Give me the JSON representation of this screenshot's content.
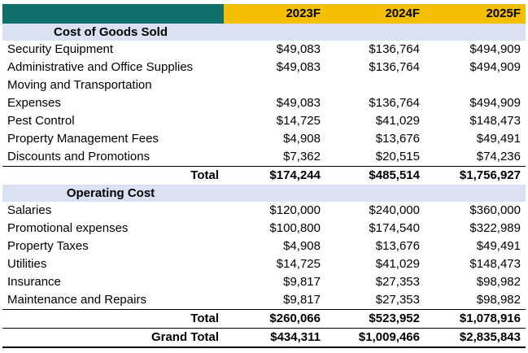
{
  "columns": [
    "2023F",
    "2024F",
    "2025F"
  ],
  "colors": {
    "corner": "#0f6f6b",
    "header": "#f4bf00",
    "section": "#d9e1f2"
  },
  "cogs": {
    "title": "Cost of Goods Sold",
    "rows": [
      {
        "label": "Security Equipment",
        "values": [
          "$49,083",
          "$136,764",
          "$494,909"
        ]
      },
      {
        "label": "Administrative and Office Supplies",
        "values": [
          "$49,083",
          "$136,764",
          "$494,909"
        ]
      },
      {
        "label": "Moving and Transportation",
        "values": [
          "",
          "",
          ""
        ]
      },
      {
        "label": "Expenses",
        "values": [
          "$49,083",
          "$136,764",
          "$494,909"
        ]
      },
      {
        "label": "Pest Control",
        "values": [
          "$14,725",
          "$41,029",
          "$148,473"
        ]
      },
      {
        "label": "Property Management Fees",
        "values": [
          "$4,908",
          "$13,676",
          "$49,491"
        ]
      },
      {
        "label": "Discounts and Promotions",
        "values": [
          "$7,362",
          "$20,515",
          "$74,236"
        ]
      }
    ],
    "total": {
      "label": "Total",
      "values": [
        "$174,244",
        "$485,514",
        "$1,756,927"
      ]
    }
  },
  "opex": {
    "title": "Operating Cost",
    "rows": [
      {
        "label": "Salaries",
        "values": [
          "$120,000",
          "$240,000",
          "$360,000"
        ]
      },
      {
        "label": "Promotional expenses",
        "values": [
          "$100,800",
          "$174,540",
          "$322,989"
        ]
      },
      {
        "label": "Property Taxes",
        "values": [
          "$4,908",
          "$13,676",
          "$49,491"
        ]
      },
      {
        "label": "Utilities",
        "values": [
          "$14,725",
          "$41,029",
          "$148,473"
        ]
      },
      {
        "label": "Insurance",
        "values": [
          "$9,817",
          "$27,353",
          "$98,982"
        ]
      },
      {
        "label": "Maintenance and Repairs",
        "values": [
          "$9,817",
          "$27,353",
          "$98,982"
        ]
      }
    ],
    "total": {
      "label": "Total",
      "values": [
        "$260,066",
        "$523,952",
        "$1,078,916"
      ]
    }
  },
  "grand_total": {
    "label": "Grand Total",
    "values": [
      "$434,311",
      "$1,009,466",
      "$2,835,843"
    ]
  }
}
